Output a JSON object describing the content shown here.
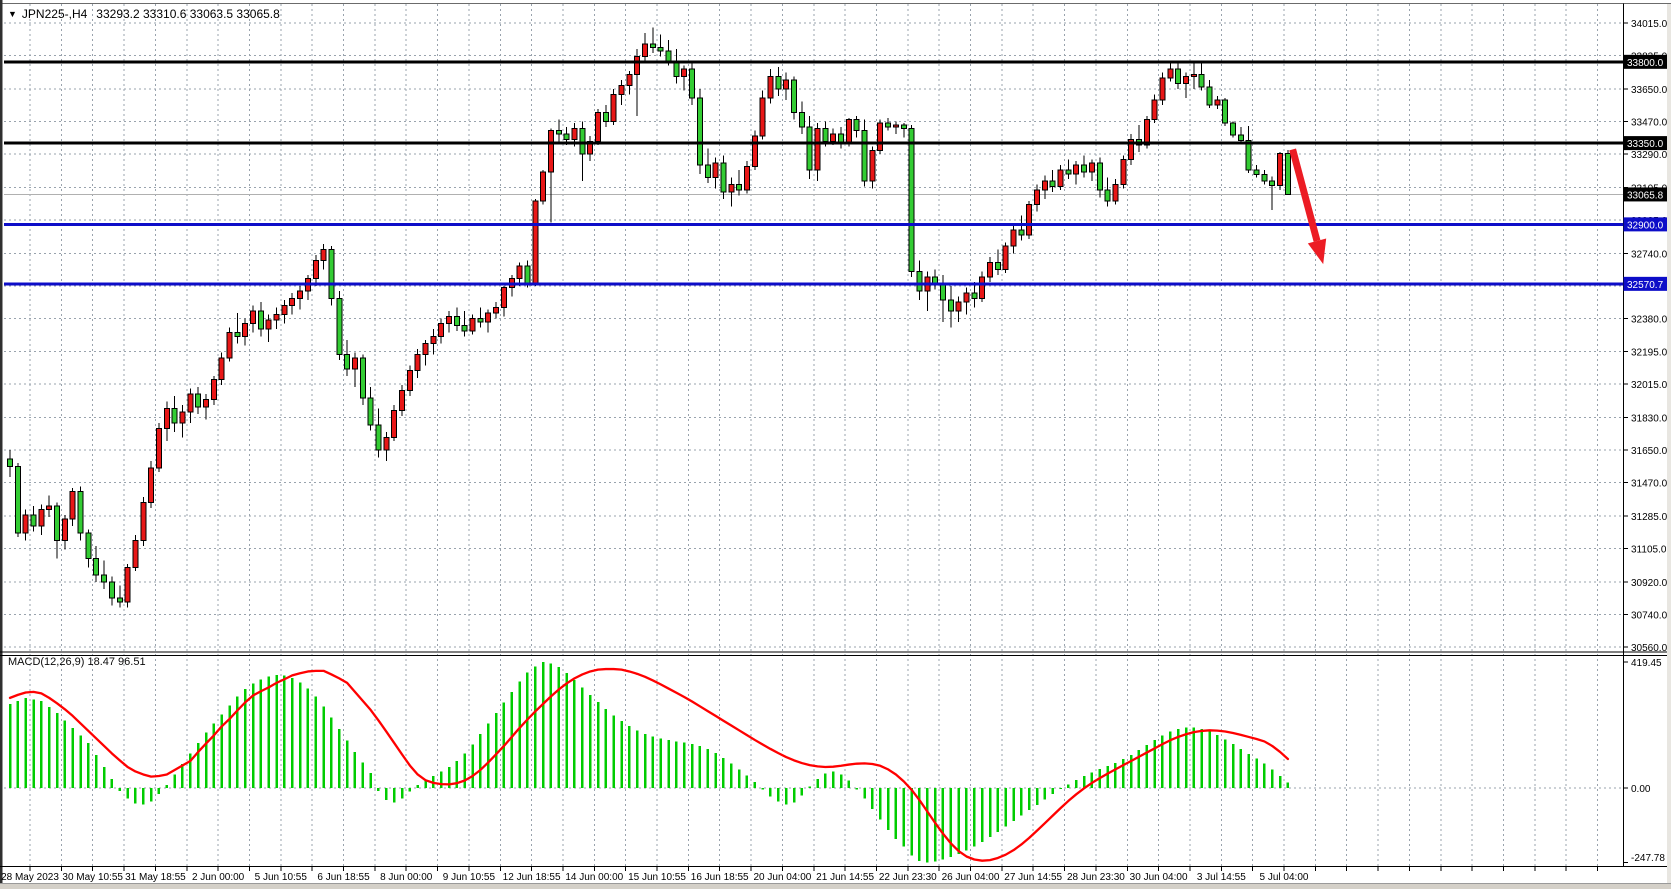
{
  "header": {
    "dropdown_icon": "▼",
    "symbol_period": "JPN225-,H4",
    "ohlc": "33293.2 33310.6 33063.5 33065.8"
  },
  "theme": {
    "bull": "#e81717",
    "bear": "#33cc33",
    "wick": "#000000",
    "grid": "#99a3ad",
    "macd_hist": "#00cc00",
    "macd_signal": "#ff0000",
    "arrow": "#ec1c24",
    "line_black": "#000000",
    "line_blue": "#0d0dc8",
    "current_price_line": "#b0b0b0"
  },
  "price_axis": {
    "ticks": [
      34015,
      33835,
      33650,
      33470,
      33290,
      33105,
      32925,
      32740,
      32560,
      32380,
      32195,
      32015,
      31830,
      31650,
      31470,
      31285,
      31105,
      30920,
      30740,
      30560
    ]
  },
  "time_axis": {
    "labels": [
      "28 May 2023",
      "30 May 10:55",
      "31 May 18:55",
      "2 Jun 00:00",
      "5 Jun 10:55",
      "6 Jun 18:55",
      "8 Jun 00:00",
      "9 Jun 10:55",
      "12 Jun 18:55",
      "14 Jun 00:00",
      "15 Jun 10:55",
      "16 Jun 18:55",
      "20 Jun 04:00",
      "21 Jun 14:55",
      "22 Jun 23:30",
      "26 Jun 04:00",
      "27 Jun 14:55",
      "28 Jun 23:30",
      "30 Jun 04:00",
      "3 Jul 14:55",
      "5 Jul 04:00"
    ]
  },
  "macd": {
    "label": "MACD(12,26,9) 18.47 96.51",
    "params": "12,26,9",
    "main_value": 18.47,
    "signal_value": 96.51,
    "axis": [
      419.45,
      0,
      -247.78
    ],
    "histogram": [
      280,
      290,
      300,
      295,
      290,
      270,
      250,
      225,
      200,
      175,
      150,
      110,
      70,
      30,
      -10,
      -35,
      -52,
      -55,
      -45,
      -20,
      10,
      45,
      80,
      115,
      150,
      185,
      215,
      245,
      275,
      305,
      330,
      348,
      362,
      372,
      376,
      374,
      366,
      352,
      332,
      305,
      272,
      235,
      196,
      158,
      120,
      85,
      50,
      -10,
      -40,
      -48,
      -35,
      -12,
      10,
      25,
      40,
      55,
      70,
      90,
      115,
      145,
      180,
      215,
      250,
      285,
      320,
      355,
      385,
      405,
      419,
      415,
      402,
      383,
      360,
      335,
      310,
      286,
      263,
      242,
      223,
      206,
      192,
      180,
      171,
      164,
      159,
      155,
      151,
      146,
      139,
      129,
      116,
      100,
      82,
      62,
      41,
      20,
      -5,
      -28,
      -45,
      -55,
      -48,
      -25,
      5,
      30,
      48,
      55,
      45,
      25,
      -5,
      -35,
      -70,
      -105,
      -140,
      -170,
      -195,
      -225,
      -243,
      -248,
      -245,
      -238,
      -230,
      -220,
      -208,
      -195,
      -180,
      -163,
      -146,
      -128,
      -110,
      -92,
      -74,
      -56,
      -38,
      -20,
      -4,
      12,
      26,
      40,
      52,
      63,
      73,
      84,
      96,
      110,
      126,
      143,
      160,
      175,
      188,
      197,
      202,
      202,
      197,
      188,
      176,
      162,
      146,
      130,
      114,
      98,
      82,
      62,
      40,
      18.47
    ],
    "signal": [
      300,
      310,
      318,
      320,
      315,
      300,
      282,
      262,
      240,
      215,
      190,
      165,
      140,
      115,
      92,
      70,
      55,
      45,
      38,
      40,
      45,
      60,
      75,
      90,
      120,
      148,
      175,
      205,
      230,
      258,
      285,
      308,
      322,
      335,
      350,
      362,
      375,
      382,
      388,
      390,
      390,
      378,
      365,
      350,
      320,
      290,
      260,
      225,
      188,
      150,
      112,
      75,
      45,
      26,
      17,
      13,
      12,
      16,
      25,
      40,
      60,
      85,
      112,
      140,
      170,
      200,
      228,
      255,
      280,
      305,
      328,
      348,
      365,
      378,
      388,
      394,
      396,
      396,
      394,
      388,
      380,
      370,
      358,
      345,
      331,
      317,
      303,
      288,
      272,
      256,
      240,
      224,
      208,
      192,
      176,
      160,
      145,
      130,
      116,
      103,
      92,
      83,
      76,
      72,
      70,
      71,
      74,
      78,
      81,
      82,
      80,
      74,
      62,
      45,
      22,
      -6,
      -40,
      -78,
      -116,
      -152,
      -184,
      -210,
      -228,
      -238,
      -242,
      -240,
      -233,
      -222,
      -207,
      -188,
      -166,
      -142,
      -117,
      -92,
      -67,
      -43,
      -21,
      -1,
      17,
      33,
      48,
      62,
      76,
      90,
      104,
      118,
      132,
      146,
      159,
      170,
      179,
      186,
      190,
      192,
      191,
      188,
      183,
      177,
      170,
      163,
      155,
      140,
      120,
      96.51
    ]
  },
  "chart_data": {
    "type": "candlestick",
    "symbol": "JPN225-",
    "timeframe": "H4",
    "ylim": [
      30560,
      34015
    ],
    "bars_per_label": 8,
    "hlines": [
      {
        "price": 33800,
        "label": "33800.0",
        "color": "#000000",
        "width": 3,
        "label_bg": "#000000"
      },
      {
        "price": 33350,
        "label": "33350.0",
        "color": "#000000",
        "width": 3,
        "label_bg": "#000000"
      },
      {
        "price": 32900,
        "label": "32900.0",
        "color": "#0d0dc8",
        "width": 3,
        "label_bg": "#0d0dc8"
      },
      {
        "price": 32570.7,
        "label": "32570.7",
        "color": "#0d0dc8",
        "width": 3,
        "label_bg": "#0d0dc8"
      },
      {
        "price": 33065.8,
        "label": "33065.8",
        "color": "#b0b0b0",
        "width": 1,
        "label_bg": "#000000",
        "role": "current-price"
      }
    ],
    "arrow": {
      "from_bar": 163.6,
      "from_price": 33315,
      "to_bar": 167.5,
      "to_price": 32680
    },
    "candles": [
      [
        31600,
        31650,
        31500,
        31560
      ],
      [
        31560,
        31580,
        31170,
        31190
      ],
      [
        31190,
        31320,
        31150,
        31290
      ],
      [
        31290,
        31340,
        31200,
        31230
      ],
      [
        31230,
        31350,
        31180,
        31320
      ],
      [
        31320,
        31400,
        31280,
        31340
      ],
      [
        31340,
        31360,
        31050,
        31150
      ],
      [
        31150,
        31290,
        31100,
        31270
      ],
      [
        31270,
        31440,
        31230,
        31420
      ],
      [
        31420,
        31450,
        31150,
        31190
      ],
      [
        31190,
        31210,
        31000,
        31050
      ],
      [
        31050,
        31120,
        30920,
        30960
      ],
      [
        30960,
        31040,
        30880,
        30920
      ],
      [
        30920,
        30950,
        30790,
        30830
      ],
      [
        30830,
        30900,
        30780,
        30810
      ],
      [
        30810,
        31020,
        30780,
        31000
      ],
      [
        31000,
        31180,
        30980,
        31150
      ],
      [
        31150,
        31390,
        31120,
        31360
      ],
      [
        31360,
        31590,
        31330,
        31550
      ],
      [
        31550,
        31800,
        31530,
        31770
      ],
      [
        31770,
        31920,
        31700,
        31880
      ],
      [
        31880,
        31950,
        31750,
        31800
      ],
      [
        31800,
        31900,
        31720,
        31860
      ],
      [
        31860,
        31990,
        31800,
        31960
      ],
      [
        31960,
        32000,
        31850,
        31890
      ],
      [
        31890,
        31960,
        31820,
        31930
      ],
      [
        31930,
        32060,
        31900,
        32040
      ],
      [
        32040,
        32190,
        32010,
        32160
      ],
      [
        32160,
        32330,
        32140,
        32300
      ],
      [
        32300,
        32410,
        32240,
        32280
      ],
      [
        32280,
        32380,
        32230,
        32350
      ],
      [
        32350,
        32450,
        32300,
        32420
      ],
      [
        32420,
        32470,
        32280,
        32320
      ],
      [
        32320,
        32400,
        32250,
        32370
      ],
      [
        32370,
        32440,
        32320,
        32400
      ],
      [
        32400,
        32480,
        32350,
        32450
      ],
      [
        32450,
        32520,
        32400,
        32490
      ],
      [
        32490,
        32560,
        32430,
        32530
      ],
      [
        32530,
        32620,
        32480,
        32600
      ],
      [
        32600,
        32730,
        32560,
        32700
      ],
      [
        32700,
        32790,
        32650,
        32760
      ],
      [
        32760,
        32780,
        32450,
        32490
      ],
      [
        32490,
        32530,
        32150,
        32180
      ],
      [
        32180,
        32260,
        32060,
        32100
      ],
      [
        32100,
        32190,
        32000,
        32160
      ],
      [
        32160,
        32180,
        31900,
        31940
      ],
      [
        31940,
        32000,
        31760,
        31790
      ],
      [
        31790,
        31880,
        31610,
        31650
      ],
      [
        31650,
        31750,
        31590,
        31720
      ],
      [
        31720,
        31900,
        31700,
        31870
      ],
      [
        31870,
        32010,
        31840,
        31980
      ],
      [
        31980,
        32120,
        31950,
        32090
      ],
      [
        32090,
        32210,
        32050,
        32180
      ],
      [
        32180,
        32260,
        32120,
        32240
      ],
      [
        32240,
        32320,
        32180,
        32280
      ],
      [
        32280,
        32380,
        32240,
        32350
      ],
      [
        32350,
        32420,
        32300,
        32390
      ],
      [
        32390,
        32440,
        32310,
        32340
      ],
      [
        32340,
        32420,
        32280,
        32310
      ],
      [
        32310,
        32400,
        32290,
        32380
      ],
      [
        32380,
        32440,
        32330,
        32360
      ],
      [
        32360,
        32430,
        32300,
        32410
      ],
      [
        32410,
        32470,
        32380,
        32440
      ],
      [
        32440,
        32560,
        32390,
        32550
      ],
      [
        32550,
        32620,
        32500,
        32600
      ],
      [
        32600,
        32690,
        32560,
        32670
      ],
      [
        32670,
        32700,
        32550,
        32570
      ],
      [
        32570,
        33040,
        32560,
        33030
      ],
      [
        33030,
        33200,
        33010,
        33190
      ],
      [
        33190,
        33430,
        32910,
        33420
      ],
      [
        33420,
        33480,
        33360,
        33400
      ],
      [
        33400,
        33440,
        33340,
        33370
      ],
      [
        33370,
        33460,
        33330,
        33430
      ],
      [
        33430,
        33470,
        33140,
        33290
      ],
      [
        33290,
        33390,
        33250,
        33360
      ],
      [
        33360,
        33540,
        33340,
        33520
      ],
      [
        33520,
        33560,
        33440,
        33470
      ],
      [
        33470,
        33650,
        33450,
        33620
      ],
      [
        33620,
        33700,
        33560,
        33670
      ],
      [
        33670,
        33750,
        33620,
        33730
      ],
      [
        33730,
        33870,
        33500,
        33830
      ],
      [
        33830,
        33960,
        33790,
        33900
      ],
      [
        33900,
        33990,
        33850,
        33880
      ],
      [
        33880,
        33950,
        33830,
        33860
      ],
      [
        33860,
        33920,
        33780,
        33800
      ],
      [
        33800,
        33870,
        33680,
        33720
      ],
      [
        33720,
        33780,
        33640,
        33760
      ],
      [
        33760,
        33790,
        33560,
        33600
      ],
      [
        33600,
        33650,
        33180,
        33230
      ],
      [
        33230,
        33320,
        33130,
        33160
      ],
      [
        33160,
        33270,
        33100,
        33240
      ],
      [
        33240,
        33280,
        33040,
        33080
      ],
      [
        33080,
        33160,
        33000,
        33120
      ],
      [
        33120,
        33200,
        33060,
        33090
      ],
      [
        33090,
        33250,
        33070,
        33220
      ],
      [
        33220,
        33420,
        33200,
        33390
      ],
      [
        33390,
        33640,
        33370,
        33600
      ],
      [
        33600,
        33760,
        33570,
        33720
      ],
      [
        33720,
        33770,
        33610,
        33650
      ],
      [
        33650,
        33740,
        33590,
        33700
      ],
      [
        33700,
        33720,
        33480,
        33520
      ],
      [
        33520,
        33580,
        33400,
        33440
      ],
      [
        33440,
        33500,
        33150,
        33200
      ],
      [
        33200,
        33460,
        33140,
        33430
      ],
      [
        33430,
        33470,
        33330,
        33360
      ],
      [
        33360,
        33430,
        33340,
        33400
      ],
      [
        33400,
        33440,
        33320,
        33350
      ],
      [
        33350,
        33490,
        33330,
        33480
      ],
      [
        33480,
        33500,
        33380,
        33420
      ],
      [
        33420,
        33480,
        33110,
        33140
      ],
      [
        33140,
        33330,
        33100,
        33310
      ],
      [
        33310,
        33480,
        33290,
        33460
      ],
      [
        33460,
        33490,
        33420,
        33440
      ],
      [
        33440,
        33470,
        33400,
        33450
      ],
      [
        33450,
        33460,
        33380,
        33430
      ],
      [
        33430,
        33450,
        32610,
        32640
      ],
      [
        32640,
        32700,
        32480,
        32530
      ],
      [
        32530,
        32640,
        32420,
        32610
      ],
      [
        32610,
        32650,
        32540,
        32570
      ],
      [
        32570,
        32620,
        32360,
        32480
      ],
      [
        32480,
        32560,
        32330,
        32420
      ],
      [
        32420,
        32500,
        32360,
        32470
      ],
      [
        32470,
        32550,
        32400,
        32520
      ],
      [
        32520,
        32580,
        32440,
        32490
      ],
      [
        32490,
        32640,
        32470,
        32610
      ],
      [
        32610,
        32720,
        32580,
        32690
      ],
      [
        32690,
        32760,
        32620,
        32650
      ],
      [
        32650,
        32800,
        32630,
        32780
      ],
      [
        32780,
        32900,
        32740,
        32870
      ],
      [
        32870,
        32950,
        32810,
        32840
      ],
      [
        32840,
        33030,
        32820,
        33010
      ],
      [
        33010,
        33120,
        32970,
        33090
      ],
      [
        33090,
        33170,
        33040,
        33140
      ],
      [
        33140,
        33200,
        33080,
        33110
      ],
      [
        33110,
        33230,
        33090,
        33200
      ],
      [
        33200,
        33260,
        33150,
        33180
      ],
      [
        33180,
        33250,
        33120,
        33230
      ],
      [
        33230,
        33280,
        33160,
        33190
      ],
      [
        33190,
        33260,
        33140,
        33240
      ],
      [
        33240,
        33270,
        33050,
        33090
      ],
      [
        33090,
        33160,
        33000,
        33030
      ],
      [
        33030,
        33150,
        33010,
        33120
      ],
      [
        33120,
        33280,
        33100,
        33260
      ],
      [
        33260,
        33400,
        33230,
        33370
      ],
      [
        33370,
        33450,
        33300,
        33340
      ],
      [
        33340,
        33500,
        33320,
        33480
      ],
      [
        33480,
        33620,
        33460,
        33590
      ],
      [
        33590,
        33740,
        33560,
        33710
      ],
      [
        33710,
        33790,
        33690,
        33760
      ],
      [
        33760,
        33800,
        33650,
        33680
      ],
      [
        33680,
        33740,
        33600,
        33720
      ],
      [
        33720,
        33795,
        33650,
        33730
      ],
      [
        33730,
        33790,
        33640,
        33660
      ],
      [
        33660,
        33700,
        33545,
        33560
      ],
      [
        33560,
        33610,
        33540,
        33590
      ],
      [
        33590,
        33600,
        33445,
        33460
      ],
      [
        33460,
        33470,
        33380,
        33395
      ],
      [
        33395,
        33440,
        33350,
        33365
      ],
      [
        33365,
        33445,
        33185,
        33200
      ],
      [
        33200,
        33230,
        33160,
        33175
      ],
      [
        33175,
        33200,
        33120,
        33140
      ],
      [
        33140,
        33165,
        32980,
        33115
      ],
      [
        33115,
        33300,
        33090,
        33293.2
      ],
      [
        33293.2,
        33310.6,
        33063.5,
        33065.8
      ]
    ]
  }
}
